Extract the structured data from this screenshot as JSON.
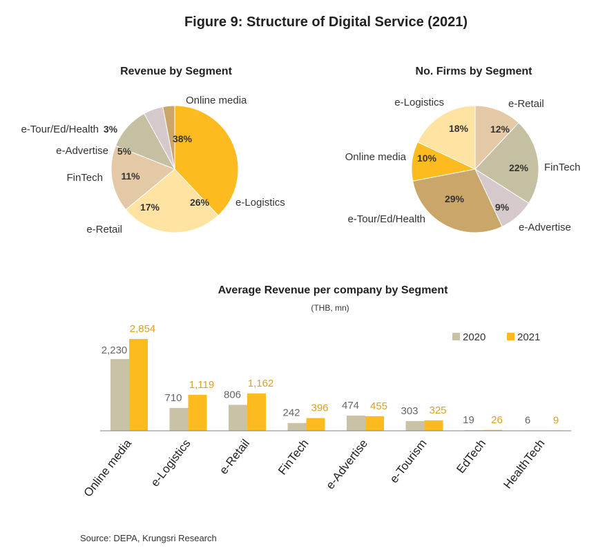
{
  "figure": {
    "title": "Figure 9: Structure of Digital Service (2021)",
    "source": "Source: DEPA, Krungsri Research"
  },
  "colors": {
    "gold": "#FDBB1F",
    "light_yellow": "#FEE3A3",
    "beige": "#E3C9A5",
    "olive": "#C6C0A3",
    "lavender": "#D6C9CB",
    "tan": "#CBA66A",
    "bar2020": "#C9C2A6",
    "bar2021": "#FDBB1F",
    "label2021": "#D9A21F"
  },
  "chart_data": [
    {
      "type": "pie",
      "title": "Revenue by Segment",
      "slices": [
        {
          "label": "Online media",
          "value": 38,
          "value_label": "38%",
          "color": "#FDBB1F"
        },
        {
          "label": "e-Logistics",
          "value": 26,
          "value_label": "26%",
          "color": "#FEE3A3"
        },
        {
          "label": "e-Retail",
          "value": 17,
          "value_label": "17%",
          "color": "#E3C9A5"
        },
        {
          "label": "FinTech",
          "value": 11,
          "value_label": "11%",
          "color": "#C6C0A3"
        },
        {
          "label": "e-Advertise",
          "value": 5,
          "value_label": "5%",
          "color": "#D6C9CB"
        },
        {
          "label": "e-Tour/Ed/Health",
          "value": 3,
          "value_label": "3%",
          "color": "#CBA66A"
        }
      ]
    },
    {
      "type": "pie",
      "title": "No. Firms by Segment",
      "slices": [
        {
          "label": "e-Retail",
          "value": 12,
          "value_label": "12%",
          "color": "#E3C9A5"
        },
        {
          "label": "FinTech",
          "value": 22,
          "value_label": "22%",
          "color": "#C6C0A3"
        },
        {
          "label": "e-Advertise",
          "value": 9,
          "value_label": "9%",
          "color": "#D6C9CB"
        },
        {
          "label": "e-Tour/Ed/Health",
          "value": 29,
          "value_label": "29%",
          "color": "#CBA66A"
        },
        {
          "label": "Online media",
          "value": 10,
          "value_label": "10%",
          "color": "#FDBB1F"
        },
        {
          "label": "e-Logistics",
          "value": 18,
          "value_label": "18%",
          "color": "#FEE3A3"
        }
      ]
    },
    {
      "type": "bar",
      "title": "Average Revenue per company by Segment",
      "subtitle": "(THB, mn)",
      "categories": [
        "Online media",
        "e-Logistics",
        "e-Retail",
        "FinTech",
        "e-Advertise",
        "e-Tourism",
        "EdTech",
        "HealthTech"
      ],
      "series": [
        {
          "name": "2020",
          "values": [
            2230,
            710,
            806,
            242,
            474,
            303,
            19,
            6
          ],
          "value_labels": [
            "2,230",
            "710",
            "806",
            "242",
            "474",
            "303",
            "19",
            "6"
          ],
          "color": "#C9C2A6"
        },
        {
          "name": "2021",
          "values": [
            2854,
            1119,
            1162,
            396,
            455,
            325,
            26,
            9
          ],
          "value_labels": [
            "2,854",
            "1,119",
            "1,162",
            "396",
            "455",
            "325",
            "26",
            "9"
          ],
          "color": "#FDBB1F"
        }
      ],
      "ylim": [
        0,
        2854
      ],
      "grid": false,
      "legend": "top-right"
    }
  ]
}
